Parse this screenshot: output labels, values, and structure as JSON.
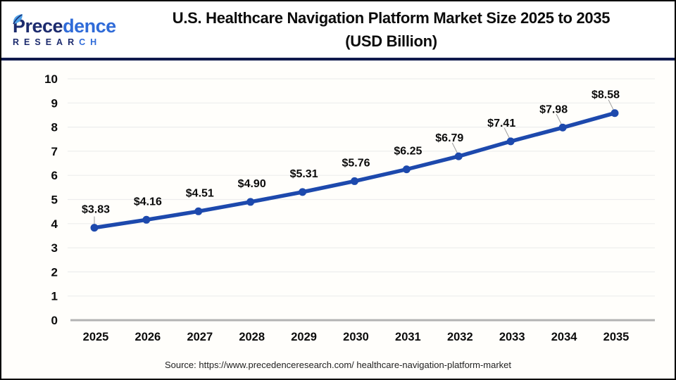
{
  "header": {
    "logo": {
      "brand_part1": "Prece",
      "brand_part2": "dence",
      "subtitle_part1": "RESEAR",
      "subtitle_part2": "CH",
      "leaf_icon": "leaf-icon"
    },
    "title_line1": "U.S. Healthcare Navigation Platform Market Size 2025 to 2035",
    "title_line2": "(USD Billion)"
  },
  "chart_data": {
    "type": "line",
    "title": "U.S. Healthcare Navigation Platform Market Size 2025 to 2035 (USD Billion)",
    "categories": [
      "2025",
      "2026",
      "2027",
      "2028",
      "2029",
      "2030",
      "2031",
      "2032",
      "2033",
      "2034",
      "2035"
    ],
    "values": [
      3.83,
      4.16,
      4.51,
      4.9,
      5.31,
      5.76,
      6.25,
      6.79,
      7.41,
      7.98,
      8.58
    ],
    "value_labels": [
      "$3.83",
      "$4.16",
      "$4.51",
      "$4.90",
      "$5.31",
      "$5.76",
      "$6.25",
      "$6.79",
      "$7.41",
      "$7.98",
      "$8.58"
    ],
    "xlabel": "",
    "ylabel": "",
    "ylim": [
      0,
      10
    ],
    "ytick_interval": 1,
    "yticks": [
      "0",
      "1",
      "2",
      "3",
      "4",
      "5",
      "6",
      "7",
      "8",
      "9",
      "10"
    ],
    "grid": true,
    "legend": "none",
    "line_color": "#1d49ad",
    "marker_color": "#1d49ad",
    "grid_color": "#ededed",
    "axis_line_color": "#b3b3b3",
    "label_color": "#0b0b0b",
    "leader_line_color": "#9a9a9a"
  },
  "footer": {
    "source": "Source: https://www.precedenceresearch.com/ healthcare-navigation-platform-market"
  }
}
